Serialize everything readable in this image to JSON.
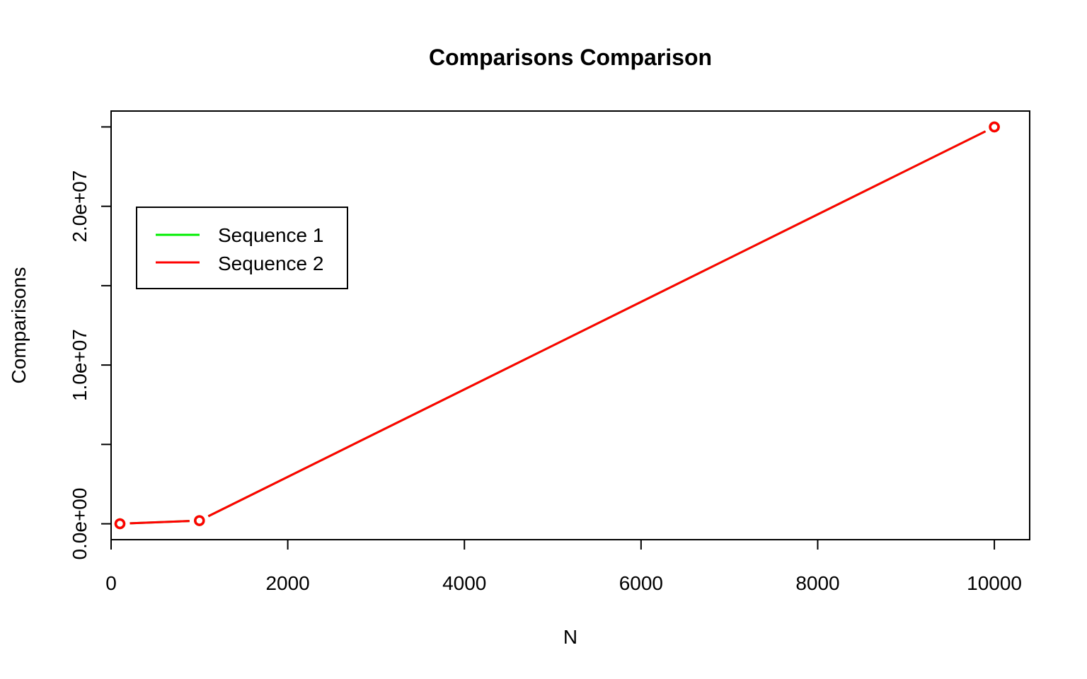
{
  "chart_data": {
    "type": "line",
    "title": "Comparisons Comparison",
    "xlabel": "N",
    "ylabel": "Comparisons",
    "x": [
      100,
      1000,
      10000
    ],
    "xlim": [
      0,
      10400
    ],
    "ylim": [
      -1000000,
      26000000
    ],
    "xticks": [
      0,
      2000,
      4000,
      6000,
      8000,
      10000
    ],
    "xtick_labels": [
      "0",
      "2000",
      "4000",
      "6000",
      "8000",
      "10000"
    ],
    "yticks": [
      0,
      5000000,
      10000000,
      15000000,
      20000000,
      25000000
    ],
    "yticks_labeled": [
      0,
      10000000,
      20000000
    ],
    "ytick_labels": [
      "0.0e+00",
      "1.0e+07",
      "2.0e+07"
    ],
    "grid": false,
    "legend_position": "top-left",
    "series": [
      {
        "name": "Sequence 1",
        "color": "#00ee00",
        "values": [
          4950,
          200000,
          25000000
        ]
      },
      {
        "name": "Sequence 2",
        "color": "#ff0000",
        "values": [
          4950,
          200000,
          25000000
        ]
      }
    ]
  }
}
